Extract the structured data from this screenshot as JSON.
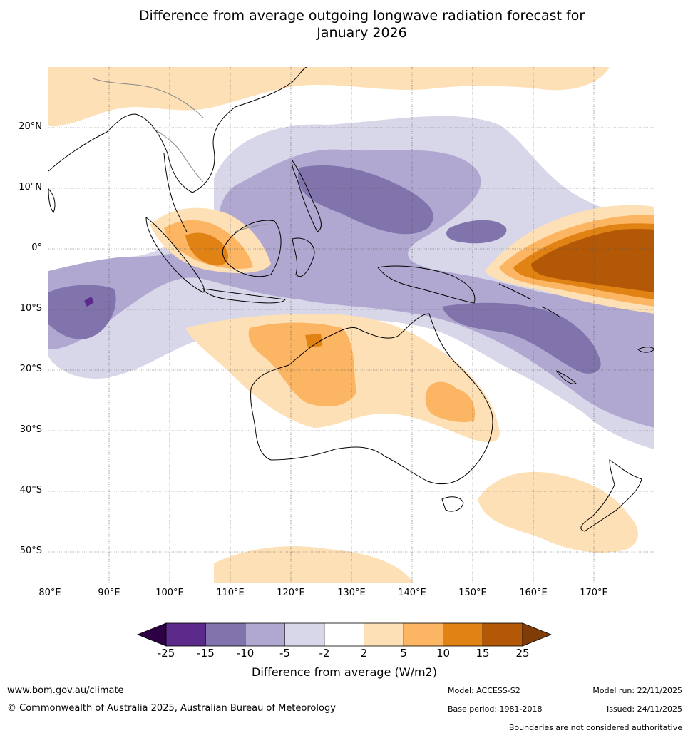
{
  "title": {
    "line1": "Difference from average outgoing longwave radiation forecast for",
    "line2": "January 2026"
  },
  "map": {
    "region": "Indo-Pacific / Australia",
    "lat_labels": [
      "20°N",
      "10°N",
      "0°",
      "10°S",
      "20°S",
      "30°S",
      "40°S",
      "50°S"
    ],
    "lon_labels": [
      "80°E",
      "90°E",
      "100°E",
      "110°E",
      "120°E",
      "130°E",
      "140°E",
      "150°E",
      "160°E",
      "170°E"
    ]
  },
  "legend": {
    "title": "Difference from average (W/m2)",
    "ticks": [
      "-25",
      "-15",
      "-10",
      "-5",
      "-2",
      "2",
      "5",
      "10",
      "15",
      "25"
    ],
    "colors": [
      "#2d0044",
      "#5b2a8a",
      "#8173ab",
      "#b1a8d1",
      "#d8d7ea",
      "#ffffff",
      "#fde0b6",
      "#fbb563",
      "#e08214",
      "#b35806",
      "#7f3b08"
    ]
  },
  "footer": {
    "website": "www.bom.gov.au/climate",
    "copyright": "© Commonwealth of Australia 2025, Australian Bureau of Meteorology",
    "model": "Model: ACCESS-S2",
    "base_period": "Base period: 1981-2018",
    "model_run": "Model run: 22/11/2025",
    "issued": "Issued: 24/11/2025",
    "disclaimer": "Boundaries are not considered authoritative"
  }
}
